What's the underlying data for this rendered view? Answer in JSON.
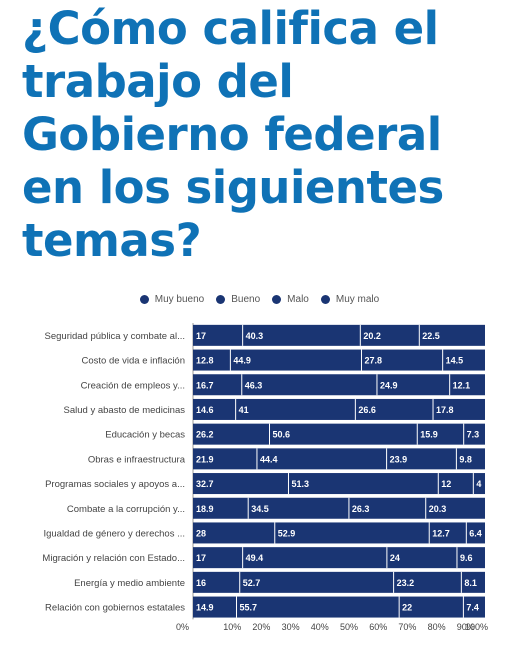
{
  "title_lines": [
    "¿Cómo califica el",
    "trabajo del",
    "Gobierno federal",
    "en los siguientes",
    "temas?"
  ],
  "colors": {
    "title": "#0f72b6",
    "bar": "#1a3573",
    "segment_separator": "#ffffff",
    "label_text": "#ffffff",
    "category_text": "#444444",
    "axis_text": "#444444"
  },
  "chart_data": {
    "type": "bar",
    "orientation": "horizontal",
    "stacked": true,
    "percent": true,
    "legend": [
      "Muy bueno",
      "Bueno",
      "Malo",
      "Muy malo"
    ],
    "legend_placement": "top-center",
    "categories": [
      "Seguridad pública y combate al...",
      "Costo de vida e inflación",
      "Creación de empleos y...",
      "Salud y abasto de medicinas",
      "Educación y becas",
      "Obras e infraestructura",
      "Programas sociales y apoyos a...",
      "Combate a la corrupción y...",
      "Igualdad de género y derechos ...",
      "Migración y relación con Estado...",
      "Energía y medio ambiente",
      "Relación con gobiernos estatales"
    ],
    "series": [
      {
        "name": "Muy bueno",
        "values": [
          17,
          12.8,
          16.7,
          14.6,
          26.2,
          21.9,
          32.7,
          18.9,
          28,
          17,
          16,
          14.9
        ]
      },
      {
        "name": "Bueno",
        "values": [
          40.3,
          44.9,
          46.3,
          41,
          50.6,
          44.4,
          51.3,
          34.5,
          52.9,
          49.4,
          52.7,
          55.7
        ]
      },
      {
        "name": "Malo",
        "values": [
          20.2,
          27.8,
          24.9,
          26.6,
          15.9,
          23.9,
          12,
          26.3,
          12.7,
          24,
          23.2,
          22
        ]
      },
      {
        "name": "Muy malo",
        "values": [
          22.5,
          14.5,
          12.1,
          17.8,
          7.3,
          9.8,
          4,
          20.3,
          6.4,
          9.6,
          8.1,
          7.4
        ]
      }
    ],
    "x_ticks": [
      "0%",
      "10%",
      "20%",
      "30%",
      "40%",
      "50%",
      "60%",
      "70%",
      "80%",
      "90%",
      "100%"
    ],
    "xlim": [
      0,
      100
    ],
    "grid": false
  }
}
